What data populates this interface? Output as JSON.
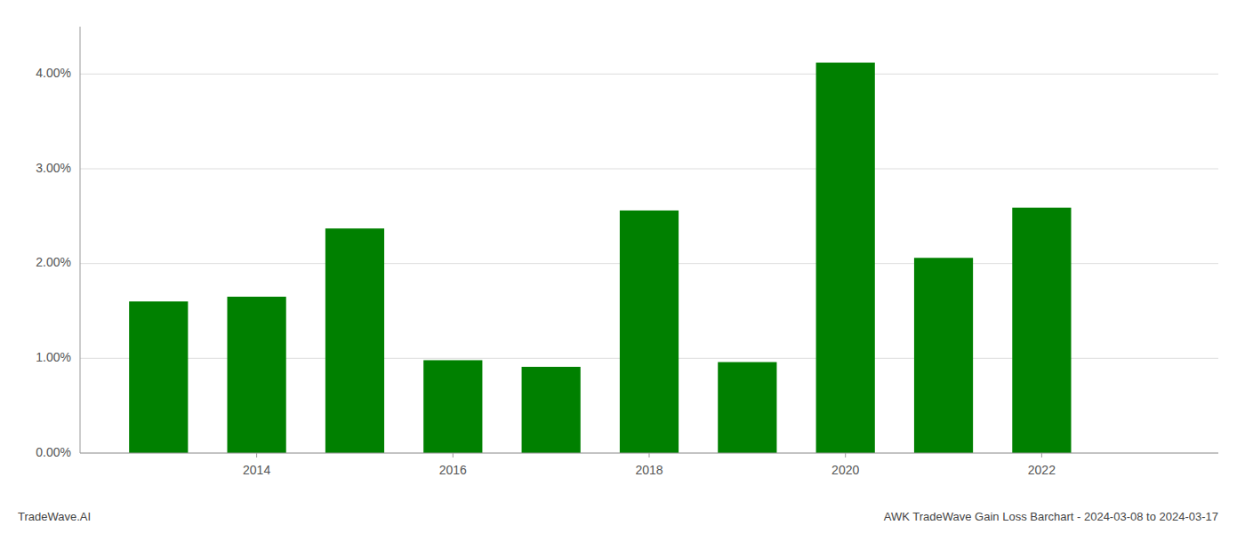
{
  "chart_data": {
    "type": "bar",
    "title": "AWK TradeWave Gain Loss Barchart - 2024-03-08 to 2024-03-17",
    "annotations": [
      "TradeWave.AI"
    ],
    "x": [
      2013,
      2014,
      2015,
      2016,
      2017,
      2018,
      2019,
      2020,
      2021,
      2022
    ],
    "values": [
      1.6,
      1.65,
      2.37,
      0.98,
      0.91,
      2.56,
      0.96,
      4.12,
      2.06,
      2.59
    ],
    "color": "#008000",
    "xlim": [
      2012.2,
      2023.8
    ],
    "xticks": [
      2014,
      2016,
      2018,
      2020,
      2022
    ],
    "ylim": [
      0.0,
      4.5
    ],
    "yticks": [
      {
        "value": 0.0,
        "label": "0.00%"
      },
      {
        "value": 1.0,
        "label": "1.00%"
      },
      {
        "value": 2.0,
        "label": "2.00%"
      },
      {
        "value": 3.0,
        "label": "3.00%"
      },
      {
        "value": 4.0,
        "label": "4.00%"
      }
    ],
    "grid": true
  }
}
